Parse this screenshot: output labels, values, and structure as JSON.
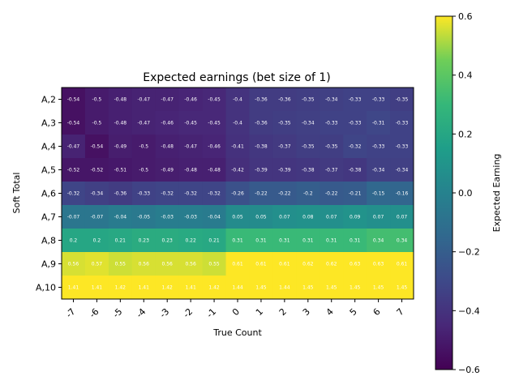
{
  "chart_data": {
    "type": "heatmap",
    "title": "Expected earnings (bet size of 1)",
    "xlabel": "True Count",
    "ylabel": "Soft Total",
    "x": [
      "-7",
      "-6",
      "-5",
      "-4",
      "-3",
      "-2",
      "-1",
      "0",
      "1",
      "2",
      "3",
      "4",
      "5",
      "6",
      "7"
    ],
    "y": [
      "A,2",
      "A,3",
      "A,4",
      "A,5",
      "A,6",
      "A,7",
      "A,8",
      "A,9",
      "A,10"
    ],
    "values": [
      [
        -0.54,
        -0.5,
        -0.48,
        -0.47,
        -0.47,
        -0.46,
        -0.45,
        -0.4,
        -0.36,
        -0.36,
        -0.35,
        -0.34,
        -0.33,
        -0.33,
        -0.35
      ],
      [
        -0.54,
        -0.5,
        -0.48,
        -0.47,
        -0.46,
        -0.45,
        -0.45,
        -0.4,
        -0.36,
        -0.35,
        -0.34,
        -0.33,
        -0.33,
        -0.31,
        -0.33
      ],
      [
        -0.47,
        -0.54,
        -0.49,
        -0.5,
        -0.48,
        -0.47,
        -0.46,
        -0.41,
        -0.38,
        -0.37,
        -0.35,
        -0.35,
        -0.32,
        -0.33,
        -0.33
      ],
      [
        -0.52,
        -0.52,
        -0.51,
        -0.5,
        -0.49,
        -0.48,
        -0.48,
        -0.42,
        -0.39,
        -0.39,
        -0.38,
        -0.37,
        -0.38,
        -0.34,
        -0.34
      ],
      [
        -0.32,
        -0.34,
        -0.36,
        -0.33,
        -0.32,
        -0.32,
        -0.32,
        -0.26,
        -0.22,
        -0.22,
        -0.2,
        -0.22,
        -0.21,
        -0.15,
        -0.16
      ],
      [
        -0.07,
        -0.07,
        -0.04,
        -0.05,
        -0.03,
        -0.03,
        -0.04,
        0.05,
        0.05,
        0.07,
        0.08,
        0.07,
        0.09,
        0.07,
        0.07
      ],
      [
        0.2,
        0.2,
        0.21,
        0.23,
        0.23,
        0.22,
        0.21,
        0.31,
        0.31,
        0.31,
        0.31,
        0.31,
        0.31,
        0.34,
        0.34
      ],
      [
        0.56,
        0.57,
        0.55,
        0.56,
        0.56,
        0.56,
        0.55,
        0.61,
        0.61,
        0.61,
        0.62,
        0.62,
        0.63,
        0.63,
        0.61
      ],
      [
        1.41,
        1.41,
        1.42,
        1.41,
        1.42,
        1.41,
        1.42,
        1.44,
        1.45,
        1.44,
        1.45,
        1.45,
        1.45,
        1.45,
        1.45
      ]
    ],
    "colorbar": {
      "label": "Expected Earning",
      "vmin": -0.6,
      "vmax": 0.6,
      "ticks": [
        "-0.6",
        "-0.4",
        "-0.2",
        "0.0",
        "0.2",
        "0.4",
        "0.6"
      ],
      "colormap": "viridis"
    },
    "grid": false
  }
}
